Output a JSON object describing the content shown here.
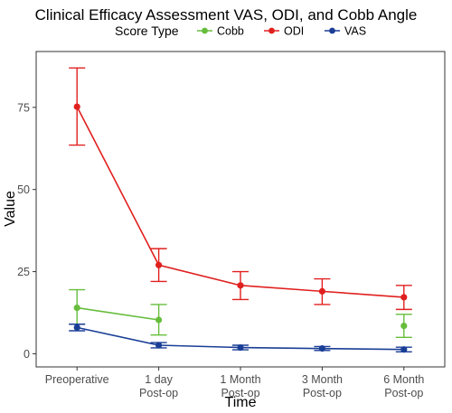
{
  "chart_data": {
    "type": "line",
    "title": "Clinical Efficacy Assessment VAS, ODI, and Cobb Angle",
    "xlabel": "Time",
    "ylabel": "Value",
    "ylim": [
      -4,
      92
    ],
    "yticks": [
      0,
      25,
      50,
      75
    ],
    "grid": false,
    "legend": {
      "title": "Score Type",
      "position": "top"
    },
    "categories": [
      [
        "Preoperative"
      ],
      [
        "1 day",
        "Post-op"
      ],
      [
        "1 Month",
        "Post-op"
      ],
      [
        "3 Month",
        "Post-op"
      ],
      [
        "6 Month",
        "Post-op"
      ]
    ],
    "series": [
      {
        "name": "Cobb",
        "color": "#66bd3c",
        "values": [
          14.0,
          10.3,
          null,
          null,
          8.5
        ],
        "lower": [
          9.0,
          5.7,
          null,
          null,
          5.0
        ],
        "upper": [
          19.5,
          15.0,
          null,
          null,
          12.0
        ],
        "connect": [
          [
            0,
            1
          ]
        ]
      },
      {
        "name": "ODI",
        "color": "#e0201f",
        "values": [
          75.2,
          27.0,
          20.8,
          19.0,
          17.2
        ],
        "lower": [
          63.5,
          22.0,
          16.5,
          15.0,
          13.5
        ],
        "upper": [
          87.0,
          32.0,
          25.0,
          22.8,
          20.8
        ],
        "connect": [
          [
            0,
            1,
            2,
            3,
            4
          ]
        ]
      },
      {
        "name": "VAS",
        "color": "#1a3e96",
        "values": [
          8.0,
          2.6,
          1.9,
          1.6,
          1.3
        ],
        "lower": [
          7.0,
          1.8,
          1.2,
          1.0,
          0.6
        ],
        "upper": [
          9.0,
          3.4,
          2.6,
          2.2,
          2.0
        ],
        "connect": [
          [
            0,
            1,
            2,
            3,
            4
          ]
        ]
      }
    ]
  }
}
